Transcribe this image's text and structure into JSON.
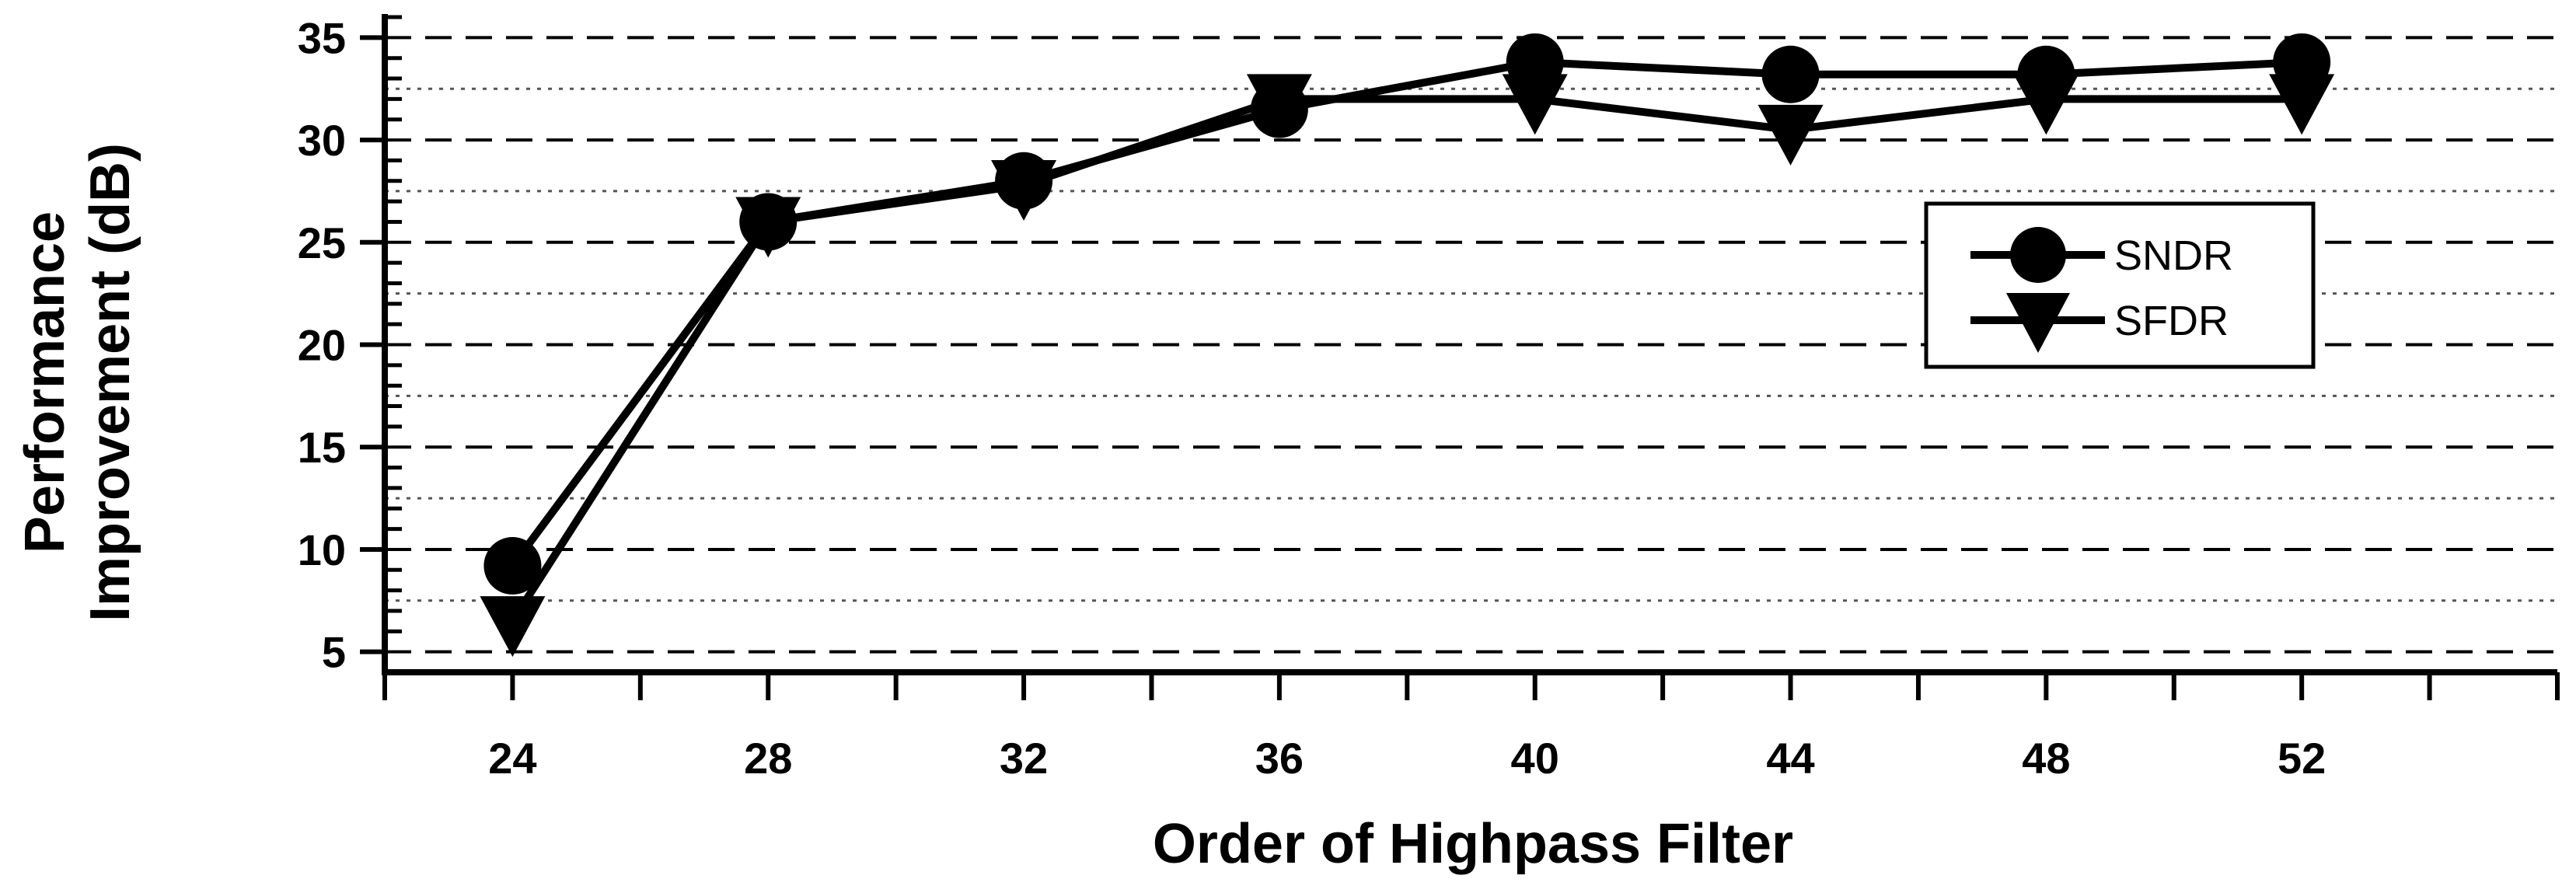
{
  "chart_data": {
    "type": "line",
    "xlabel": "Order of Highpass  Filter",
    "ylabel_lines": [
      "Performance",
      "Improvement (dB)"
    ],
    "x": [
      24,
      28,
      32,
      36,
      40,
      44,
      48,
      52
    ],
    "x_ticks": [
      "24",
      "28",
      "32",
      "36",
      "40",
      "44",
      "48",
      "52"
    ],
    "xlim": [
      22,
      56
    ],
    "ylim": [
      4,
      36
    ],
    "y_ticks": [
      "5",
      "10",
      "15",
      "20",
      "25",
      "30",
      "35"
    ],
    "y_tick_values": [
      5,
      10,
      15,
      20,
      25,
      30,
      35
    ],
    "grid": "on (dashed major, dotted minor)",
    "legend_position": "right",
    "series": [
      {
        "name": "SNDR",
        "marker": "circle",
        "values": [
          9.2,
          26.0,
          28.0,
          31.5,
          33.8,
          33.2,
          33.2,
          33.8
        ]
      },
      {
        "name": "SFDR",
        "marker": "triangle-down",
        "values": [
          6.5,
          26.0,
          27.8,
          32.0,
          32.0,
          30.5,
          32.0,
          32.0
        ]
      }
    ],
    "line_color": "#000000"
  }
}
